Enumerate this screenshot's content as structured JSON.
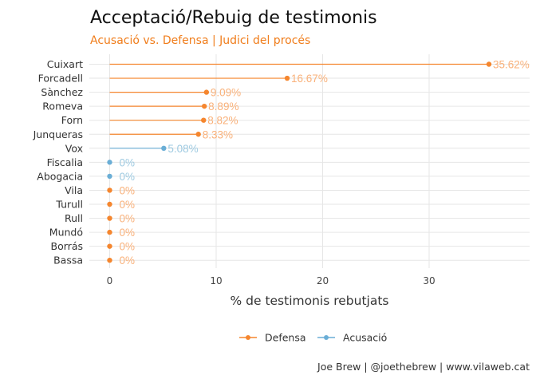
{
  "chart_data": {
    "type": "dot-line",
    "title": "Acceptació/Rebuig de testimonis",
    "subtitle": "Acusació vs. Defensa | Judici del procés",
    "xlabel": "% de testimonis rebutjats",
    "ylabel": "",
    "xlim": [
      0,
      40
    ],
    "x_ticks": [
      0,
      10,
      20,
      30
    ],
    "grid": true,
    "legend_position": "bottom",
    "colors": {
      "Defensa": "#f5862e",
      "Acusació": "#6aaed6",
      "Defensa_label": "#f9b17a",
      "Acusació_label": "#9ecae1"
    },
    "points": [
      {
        "name": "Cuixart",
        "value": 35.62,
        "label": "35.62%",
        "series": "Defensa"
      },
      {
        "name": "Forcadell",
        "value": 16.67,
        "label": "16.67%",
        "series": "Defensa"
      },
      {
        "name": "Sànchez",
        "value": 9.09,
        "label": "9.09%",
        "series": "Defensa"
      },
      {
        "name": "Romeva",
        "value": 8.89,
        "label": "8.89%",
        "series": "Defensa"
      },
      {
        "name": "Forn",
        "value": 8.82,
        "label": "8.82%",
        "series": "Defensa"
      },
      {
        "name": "Junqueras",
        "value": 8.33,
        "label": "8.33%",
        "series": "Defensa"
      },
      {
        "name": "Vox",
        "value": 5.08,
        "label": "5.08%",
        "series": "Acusació"
      },
      {
        "name": "Fiscalia",
        "value": 0,
        "label": "0%",
        "series": "Acusació"
      },
      {
        "name": "Abogacia",
        "value": 0,
        "label": "0%",
        "series": "Acusació"
      },
      {
        "name": "Vila",
        "value": 0,
        "label": "0%",
        "series": "Defensa"
      },
      {
        "name": "Turull",
        "value": 0,
        "label": "0%",
        "series": "Defensa"
      },
      {
        "name": "Rull",
        "value": 0,
        "label": "0%",
        "series": "Defensa"
      },
      {
        "name": "Mundó",
        "value": 0,
        "label": "0%",
        "series": "Defensa"
      },
      {
        "name": "Borrás",
        "value": 0,
        "label": "0%",
        "series": "Defensa"
      },
      {
        "name": "Bassa",
        "value": 0,
        "label": "0%",
        "series": "Defensa"
      }
    ],
    "legend": [
      "Defensa",
      "Acusació"
    ]
  },
  "caption": "Joe Brew | @joethebrew | www.vilaweb.cat"
}
